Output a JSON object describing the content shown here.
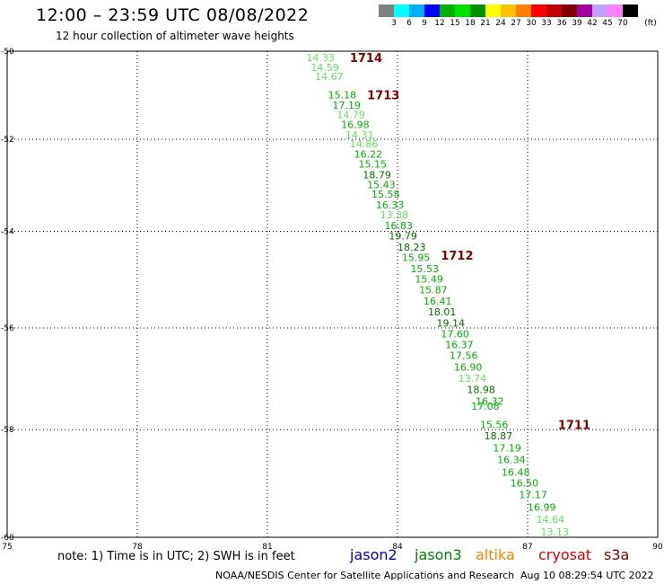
{
  "header": {
    "title": "12:00 – 23:59 UTC 08/08/2022",
    "subtitle": "12 hour collection of altimeter wave heights"
  },
  "legend": {
    "colors": [
      "#808080",
      "#00ffff",
      "#00b0ff",
      "#0000ff",
      "#00b000",
      "#00e000",
      "#009000",
      "#ffff00",
      "#ffc000",
      "#ff8000",
      "#ff0000",
      "#c00000",
      "#800000",
      "#a000a0",
      "#c0a0ff",
      "#ff80ff",
      "#000000"
    ],
    "labels": [
      "3",
      "6",
      "9",
      "12",
      "15",
      "18",
      "21",
      "24",
      "27",
      "30",
      "33",
      "36",
      "39",
      "42",
      "45",
      "70"
    ],
    "unit": "(ft)"
  },
  "map": {
    "lon_min": 75,
    "lon_max": 90,
    "lat_min": -60,
    "lat_max": -50,
    "lon_ticks": [
      "75",
      "78",
      "81",
      "84",
      "87",
      "90"
    ],
    "lat_ticks": [
      "-50",
      "-52",
      "-54",
      "-56",
      "-58",
      "-60"
    ],
    "color_scale": {
      "light": "#60e060",
      "mid": "#00b000",
      "dark": "#007000"
    },
    "passes": [
      {
        "label": "1714",
        "lon": 82.9,
        "lat": -50.15
      },
      {
        "label": "1713",
        "lon": 83.3,
        "lat": -51.0
      },
      {
        "label": "1712",
        "lon": 85.0,
        "lat": -54.5
      },
      {
        "label": "1711",
        "lon": 87.7,
        "lat": -57.9
      }
    ],
    "observations": [
      {
        "v": "14.33",
        "lon": 81.9,
        "lat": -50.15
      },
      {
        "v": "14.59",
        "lon": 82.0,
        "lat": -50.37
      },
      {
        "v": "14.67",
        "lon": 82.1,
        "lat": -50.58
      },
      {
        "v": "15.18",
        "lon": 82.4,
        "lat": -51.0
      },
      {
        "v": "17.19",
        "lon": 82.5,
        "lat": -51.23
      },
      {
        "v": "14.79",
        "lon": 82.6,
        "lat": -51.45
      },
      {
        "v": "16.98",
        "lon": 82.7,
        "lat": -51.67
      },
      {
        "v": "14.31",
        "lon": 82.8,
        "lat": -51.9
      },
      {
        "v": "14.86",
        "lon": 82.9,
        "lat": -52.1
      },
      {
        "v": "16.22",
        "lon": 83.0,
        "lat": -52.33
      },
      {
        "v": "15.15",
        "lon": 83.1,
        "lat": -52.55
      },
      {
        "v": "18.79",
        "lon": 83.2,
        "lat": -52.78
      },
      {
        "v": "15.43",
        "lon": 83.3,
        "lat": -53.0
      },
      {
        "v": "15.58",
        "lon": 83.4,
        "lat": -53.2
      },
      {
        "v": "16.33",
        "lon": 83.5,
        "lat": -53.43
      },
      {
        "v": "13.38",
        "lon": 83.6,
        "lat": -53.65
      },
      {
        "v": "16.83",
        "lon": 83.7,
        "lat": -53.88
      },
      {
        "v": "19.79",
        "lon": 83.8,
        "lat": -54.1
      },
      {
        "v": "18.23",
        "lon": 84.0,
        "lat": -54.33
      },
      {
        "v": "15.95",
        "lon": 84.1,
        "lat": -54.55
      },
      {
        "v": "15.53",
        "lon": 84.3,
        "lat": -54.78
      },
      {
        "v": "15.49",
        "lon": 84.4,
        "lat": -55.0
      },
      {
        "v": "15.87",
        "lon": 84.5,
        "lat": -55.22
      },
      {
        "v": "16.41",
        "lon": 84.6,
        "lat": -55.45
      },
      {
        "v": "18.01",
        "lon": 84.7,
        "lat": -55.67
      },
      {
        "v": "19.14",
        "lon": 84.9,
        "lat": -55.9
      },
      {
        "v": "17.60",
        "lon": 85.0,
        "lat": -56.12
      },
      {
        "v": "16.37",
        "lon": 85.1,
        "lat": -56.33
      },
      {
        "v": "17.56",
        "lon": 85.2,
        "lat": -56.55
      },
      {
        "v": "16.90",
        "lon": 85.3,
        "lat": -56.78
      },
      {
        "v": "13.74",
        "lon": 85.4,
        "lat": -57.0
      },
      {
        "v": "18.98",
        "lon": 85.6,
        "lat": -57.22
      },
      {
        "v": "16.32",
        "lon": 85.8,
        "lat": -57.45
      },
      {
        "v": "17.08",
        "lon": 85.7,
        "lat": -57.55
      },
      {
        "v": "15.56",
        "lon": 85.9,
        "lat": -57.9
      },
      {
        "v": "18.87",
        "lon": 86.0,
        "lat": -58.12
      },
      {
        "v": "17.19",
        "lon": 86.2,
        "lat": -58.35
      },
      {
        "v": "16.34",
        "lon": 86.3,
        "lat": -58.57
      },
      {
        "v": "16.48",
        "lon": 86.4,
        "lat": -58.8
      },
      {
        "v": "16.50",
        "lon": 86.6,
        "lat": -59.0
      },
      {
        "v": "17.17",
        "lon": 86.8,
        "lat": -59.22
      },
      {
        "v": "16.99",
        "lon": 87.0,
        "lat": -59.45
      },
      {
        "v": "14.64",
        "lon": 87.2,
        "lat": -59.67
      },
      {
        "v": "13.13",
        "lon": 87.3,
        "lat": -59.9
      }
    ]
  },
  "footer": {
    "note": "note:  1) Time is in UTC;  2) SWH is in feet",
    "satellites": [
      {
        "name": "jason2",
        "color": "#0000d0"
      },
      {
        "name": "jason3",
        "color": "#008000"
      },
      {
        "name": "altika",
        "color": "#ff8000"
      },
      {
        "name": "cryosat",
        "color": "#d00000"
      },
      {
        "name": "s3a",
        "color": "#800000"
      }
    ],
    "credit": "NOAA/NESDIS Center for Satellite Applications and Research",
    "timestamp": "Aug 10 08:29:54 UTC 2022"
  }
}
